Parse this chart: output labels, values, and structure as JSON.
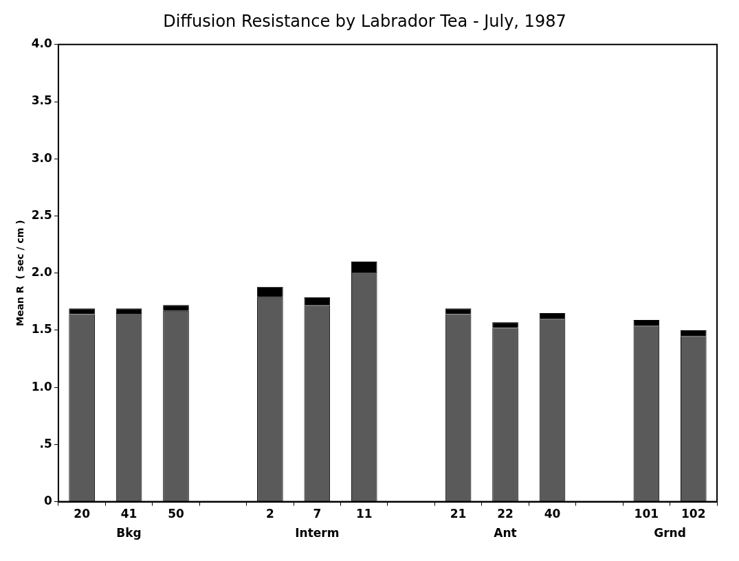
{
  "chart_data": {
    "type": "bar",
    "title": "Diffusion Resistance by Labrador Tea - July, 1987",
    "ylabel": "Mean R  ( sec / cm )",
    "categories": [
      "20",
      "41",
      "50",
      null,
      "2",
      "7",
      "11",
      null,
      "21",
      "22",
      "40",
      null,
      "101",
      "102"
    ],
    "series": [
      {
        "color": "#5a5a5a",
        "values": [
          1.64,
          1.65,
          1.67,
          null,
          1.79,
          1.72,
          2.01,
          null,
          1.64,
          1.52,
          1.6,
          null,
          1.54,
          1.45
        ]
      },
      {
        "color": "#000000",
        "values": [
          0.05,
          0.04,
          0.05,
          null,
          0.09,
          0.07,
          0.09,
          null,
          0.05,
          0.05,
          0.05,
          null,
          0.05,
          0.05
        ]
      }
    ],
    "stacked": true,
    "ylim": [
      0,
      4
    ],
    "yticks": [
      0,
      {
        "value": 0.5,
        "label": ".5"
      },
      {
        "value": 1,
        "label": "1.0"
      },
      1.5,
      {
        "value": 2,
        "label": "2.0"
      },
      2.5,
      {
        "value": 3,
        "label": "3.0"
      },
      3.5,
      {
        "value": 4,
        "label": "4.0"
      }
    ],
    "annotations": [
      "Bkg",
      "Interm",
      "Ant",
      "Grnd"
    ],
    "grid": false,
    "legend": false
  }
}
